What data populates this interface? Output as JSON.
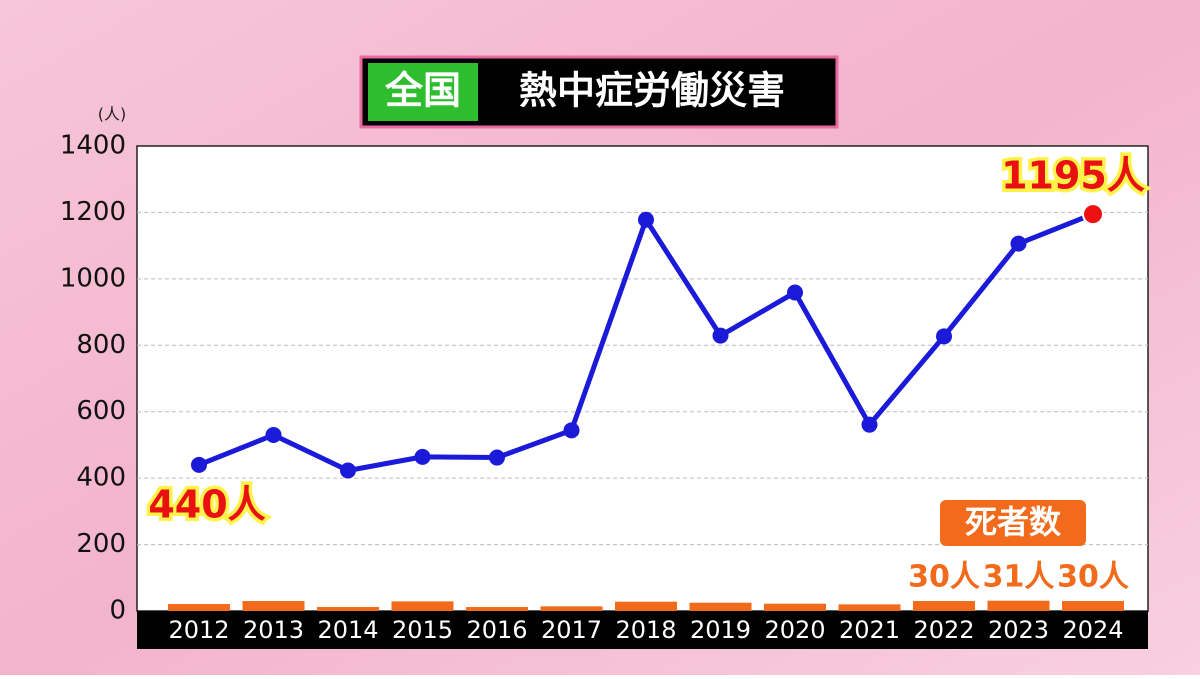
{
  "chart_data": {
    "type": "line",
    "title_badge": "全国",
    "title": "熱中症労働災害",
    "y_unit": "(人)",
    "categories": [
      "2012",
      "2013",
      "2014",
      "2015",
      "2016",
      "2017",
      "2018",
      "2019",
      "2020",
      "2021",
      "2022",
      "2023",
      "2024"
    ],
    "series": [
      {
        "type": "line",
        "color": "#1a1ad8",
        "last_point_color": "#ee1111",
        "values": [
          440,
          530,
          423,
          464,
          462,
          544,
          1178,
          829,
          959,
          561,
          827,
          1106,
          1195
        ],
        "value_labels": [
          "440人",
          null,
          null,
          null,
          null,
          null,
          null,
          null,
          null,
          null,
          null,
          null,
          "1195人"
        ]
      },
      {
        "type": "bar",
        "name": "死者数",
        "color": "#f26a1b",
        "values": [
          21,
          30,
          12,
          29,
          12,
          14,
          28,
          25,
          22,
          20,
          30,
          31,
          30
        ],
        "value_labels": [
          null,
          null,
          null,
          null,
          null,
          null,
          null,
          null,
          null,
          null,
          "30人",
          "31人",
          "30人"
        ]
      }
    ],
    "ylim": [
      0,
      1400
    ],
    "yticks": [
      0,
      200,
      400,
      600,
      800,
      1000,
      1200,
      1400
    ],
    "grid": true
  }
}
